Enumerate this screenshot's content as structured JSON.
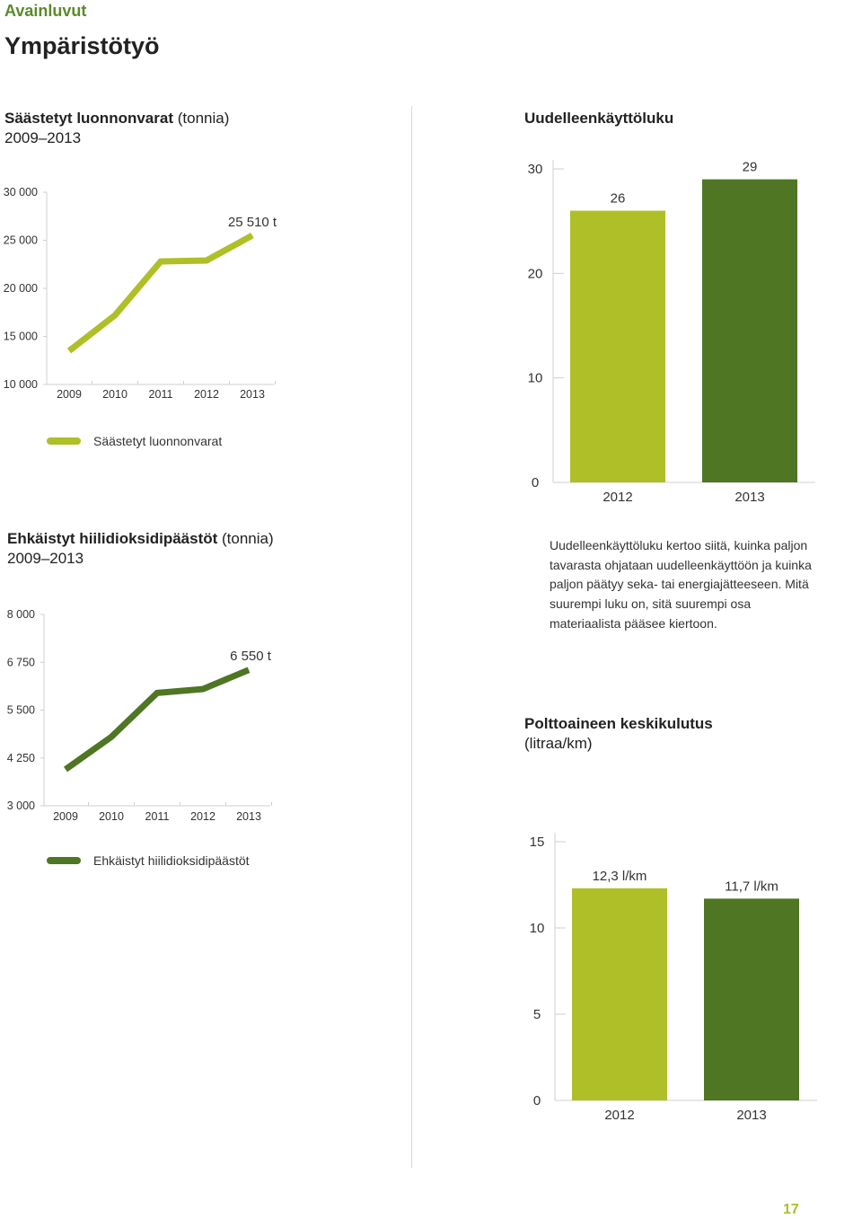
{
  "header": {
    "section_label": "Avainluvut",
    "page_title": "Ympäristötyö"
  },
  "colors": {
    "light_green": "#AFBF27",
    "dark_green": "#4E7623",
    "axis": "#cfcfcf",
    "divider": "#c9dde6"
  },
  "description": "Uudelleenkäyttöluku kertoo siitä, kuinka paljon tavarasta ohjataan uudelleenkäyttöön ja kuinka paljon päätyy seka- tai energiajätteeseen. Mitä suurempi luku on, sitä suurempi osa materiaalista pääsee kiertoon.",
  "page_number": "17",
  "chart_data": [
    {
      "id": "saved",
      "type": "line",
      "title": "Säästetyt luonnonvarat",
      "title_unit": "(tonnia)",
      "subtitle": "2009–2013",
      "x": [
        "2009",
        "2010",
        "2011",
        "2012",
        "2013"
      ],
      "values": [
        13500,
        17200,
        22800,
        22900,
        25510
      ],
      "ylim": [
        10000,
        30000
      ],
      "yticks": [
        "10 000",
        "15 000",
        "20 000",
        "25 000",
        "30 000"
      ],
      "ytick_values": [
        10000,
        15000,
        20000,
        25000,
        30000
      ],
      "annotation": "25 510 t",
      "legend": "Säästetyt luonnonvarat",
      "color": "#AFBF27"
    },
    {
      "id": "reuse",
      "type": "bar",
      "title": "Uudelleenkäyttöluku",
      "categories": [
        "2012",
        "2013"
      ],
      "values": [
        26,
        29
      ],
      "data_labels": [
        "26",
        "29"
      ],
      "ylim": [
        0,
        30
      ],
      "yticks": [
        "0",
        "10",
        "20",
        "30"
      ],
      "ytick_values": [
        0,
        10,
        20,
        30
      ],
      "colors": [
        "#AFBF27",
        "#4E7623"
      ]
    },
    {
      "id": "co2",
      "type": "line",
      "title": "Ehkäistyt hiilidioksidipäästöt",
      "title_unit": "(tonnia)",
      "subtitle": "2009–2013",
      "x": [
        "2009",
        "2010",
        "2011",
        "2012",
        "2013"
      ],
      "values": [
        3950,
        4800,
        5950,
        6050,
        6550
      ],
      "ylim": [
        3000,
        8000
      ],
      "yticks": [
        "3 000",
        "4 250",
        "5 500",
        "6 750",
        "8 000"
      ],
      "ytick_values": [
        3000,
        4250,
        5500,
        6750,
        8000
      ],
      "annotation": "6 550 t",
      "legend": "Ehkäistyt hiilidioksidipäästöt",
      "color": "#4E7623"
    },
    {
      "id": "fuel",
      "type": "bar",
      "title": "Polttoaineen keskikulutus",
      "title_unit": "(litraa/km)",
      "categories": [
        "2012",
        "2013"
      ],
      "values": [
        12.3,
        11.7
      ],
      "data_labels": [
        "12,3 l/km",
        "11,7 l/km"
      ],
      "ylim": [
        0,
        15
      ],
      "yticks": [
        "0",
        "5",
        "10",
        "15"
      ],
      "ytick_values": [
        0,
        5,
        10,
        15
      ],
      "colors": [
        "#AFBF27",
        "#4E7623"
      ]
    }
  ]
}
